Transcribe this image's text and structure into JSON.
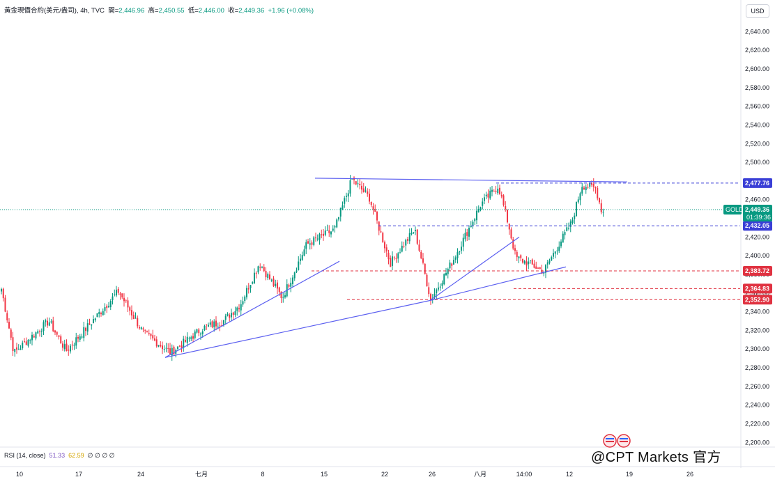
{
  "header": {
    "symbol": "黃金現價合約(美元/盎司), 4h, TVC",
    "open_label": "開=",
    "open": "2,446.96",
    "high_label": "高=",
    "high": "2,450.55",
    "low_label": "低=",
    "low": "2,446.00",
    "close_label": "收=",
    "close": "2,449.36",
    "change": "+1.96 (+0.08%)"
  },
  "currency": "USD",
  "rsi": {
    "label": "RSI (14, close)",
    "value1": "51.33",
    "value2": "62.59",
    "zeros": "∅ ∅ ∅ ∅"
  },
  "watermark": "@CPT Markets 官方",
  "price_tag": {
    "name": "GOLD",
    "price": "2,449.36",
    "countdown": "01:39:36"
  },
  "level_labels": [
    "2,477.76",
    "2,432.05",
    "2,383.72",
    "2,364.83",
    "2,352.90"
  ],
  "colors": {
    "up": "#089981",
    "down": "#f23645",
    "trendline": "#5b5ff0",
    "level_blue": "#3a3fd6",
    "level_red": "#e03241"
  },
  "chart_data": {
    "type": "candlestick",
    "timeframe": "4h",
    "y_axis_ticks": [
      "2,640.00",
      "2,620.00",
      "2,600.00",
      "2,580.00",
      "2,560.00",
      "2,540.00",
      "2,520.00",
      "2,500.00",
      "2,480.00",
      "2,460.00",
      "2,440.00",
      "2,420.00",
      "2,400.00",
      "2,380.00",
      "2,360.00",
      "2,340.00",
      "2,320.00",
      "2,300.00",
      "2,280.00",
      "2,260.00",
      "2,240.00",
      "2,220.00",
      "2,200.00"
    ],
    "ylim": [
      2195,
      2650
    ],
    "x_axis_labels": [
      "10",
      "17",
      "24",
      "七月",
      "8",
      "15",
      "22",
      "26",
      "八月",
      "14:00",
      "12",
      "19",
      "26"
    ],
    "anchors": [
      [
        0,
        2372
      ],
      [
        20,
        2296
      ],
      [
        70,
        2330
      ],
      [
        95,
        2298
      ],
      [
        170,
        2362
      ],
      [
        205,
        2318
      ],
      [
        245,
        2296
      ],
      [
        290,
        2322
      ],
      [
        320,
        2330
      ],
      [
        345,
        2348
      ],
      [
        372,
        2392
      ],
      [
        405,
        2355
      ],
      [
        440,
        2412
      ],
      [
        480,
        2428
      ],
      [
        505,
        2482
      ],
      [
        530,
        2462
      ],
      [
        560,
        2392
      ],
      [
        595,
        2428
      ],
      [
        618,
        2353
      ],
      [
        650,
        2395
      ],
      [
        690,
        2455
      ],
      [
        715,
        2475
      ],
      [
        730,
        2432
      ],
      [
        740,
        2398
      ],
      [
        758,
        2392
      ],
      [
        780,
        2383
      ],
      [
        800,
        2410
      ],
      [
        820,
        2435
      ],
      [
        835,
        2476
      ],
      [
        855,
        2472
      ],
      [
        864,
        2446
      ],
      [
        868,
        2449
      ]
    ],
    "levels": [
      {
        "price": 2477.76,
        "style": "dashed",
        "color": "blue",
        "from_x": 712
      },
      {
        "price": 2432.05,
        "style": "dashed",
        "color": "blue",
        "from_x": 543
      },
      {
        "price": 2383.72,
        "style": "dashed",
        "color": "red",
        "from_x": 447
      },
      {
        "price": 2364.83,
        "style": "dashed",
        "color": "red",
        "from_x": 737
      },
      {
        "price": 2352.9,
        "style": "dashed",
        "color": "red",
        "from_x": 498
      }
    ],
    "last_price": 2449.36,
    "trendlines": [
      {
        "from": [
          237,
          2291
        ],
        "to": [
          487,
          2394
        ]
      },
      {
        "from": [
          237,
          2291
        ],
        "to": [
          617,
          2352
        ]
      },
      {
        "from": [
          617,
          2352
        ],
        "to": [
          812,
          2388
        ]
      },
      {
        "from": [
          617,
          2352
        ],
        "to": [
          745,
          2420
        ]
      },
      {
        "from": [
          452,
          2483
        ],
        "to": [
          900,
          2479
        ]
      }
    ]
  }
}
